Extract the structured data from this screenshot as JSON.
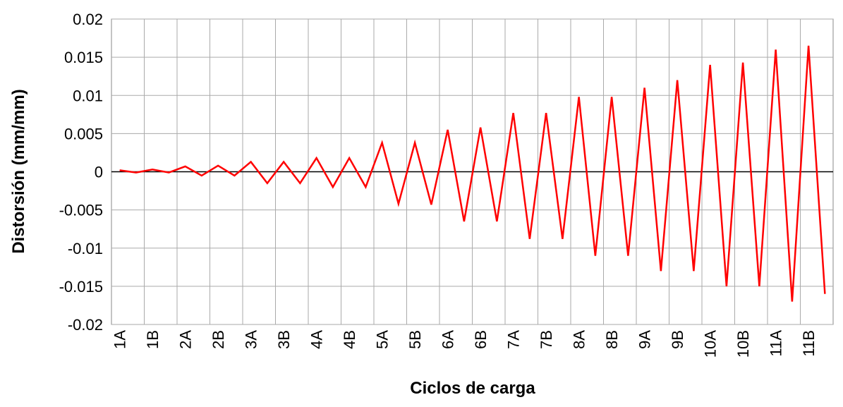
{
  "chart_data": {
    "type": "line",
    "xlabel": "Ciclos de carga",
    "ylabel": "Distorsión (mm/mm)",
    "categories": [
      "1A",
      null,
      "1B",
      null,
      "2A",
      null,
      "2B",
      null,
      "3A",
      null,
      "3B",
      null,
      "4A",
      null,
      "4B",
      null,
      "5A",
      null,
      "5B",
      null,
      "6A",
      null,
      "6B",
      null,
      "7A",
      null,
      "7B",
      null,
      "8A",
      null,
      "8B",
      null,
      "9A",
      null,
      "9B",
      null,
      "10A",
      null,
      "10B",
      null,
      "11A",
      null,
      "11B",
      null
    ],
    "series": [
      {
        "name": "Distorsión",
        "color": "#ff0000",
        "values": [
          0.0002,
          -0.0001,
          0.0003,
          -0.0001,
          0.0007,
          -0.0005,
          0.0008,
          -0.0005,
          0.0013,
          -0.0015,
          0.0013,
          -0.0015,
          0.0018,
          -0.002,
          0.0018,
          -0.002,
          0.0038,
          -0.0042,
          0.0038,
          -0.0043,
          0.0055,
          -0.0065,
          0.0058,
          -0.0065,
          0.0077,
          -0.0088,
          0.0077,
          -0.0088,
          0.0098,
          -0.011,
          0.0098,
          -0.011,
          0.011,
          -0.013,
          0.012,
          -0.013,
          0.014,
          -0.015,
          0.0143,
          -0.015,
          0.016,
          -0.017,
          0.0165,
          -0.016
        ]
      }
    ],
    "ylim": [
      -0.02,
      0.02
    ],
    "yticks": [
      -0.02,
      -0.015,
      -0.01,
      -0.005,
      0,
      0.005,
      0.01,
      0.015,
      0.02
    ],
    "grid": true
  }
}
